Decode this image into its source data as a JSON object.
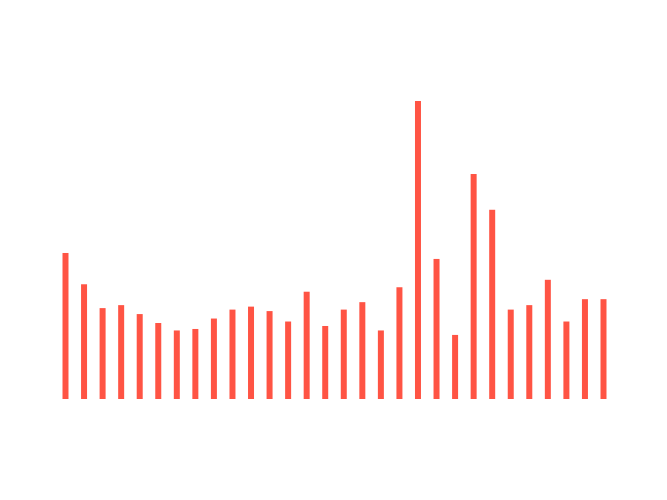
{
  "chart_data": {
    "type": "bar",
    "title": "",
    "xlabel": "",
    "ylabel": "",
    "axes_visible": false,
    "grid": false,
    "legend": "none",
    "bar_color": "#FF5444",
    "ylim": [
      0,
      100
    ],
    "values": [
      49.0,
      38.5,
      30.5,
      31.5,
      28.5,
      25.5,
      23.0,
      23.5,
      27.0,
      30.0,
      31.0,
      29.5,
      26.0,
      36.0,
      24.5,
      30.0,
      32.5,
      23.0,
      37.5,
      100.0,
      47.0,
      21.5,
      75.5,
      63.5,
      30.0,
      31.5,
      40.0,
      26.0,
      33.5,
      33.5
    ]
  }
}
